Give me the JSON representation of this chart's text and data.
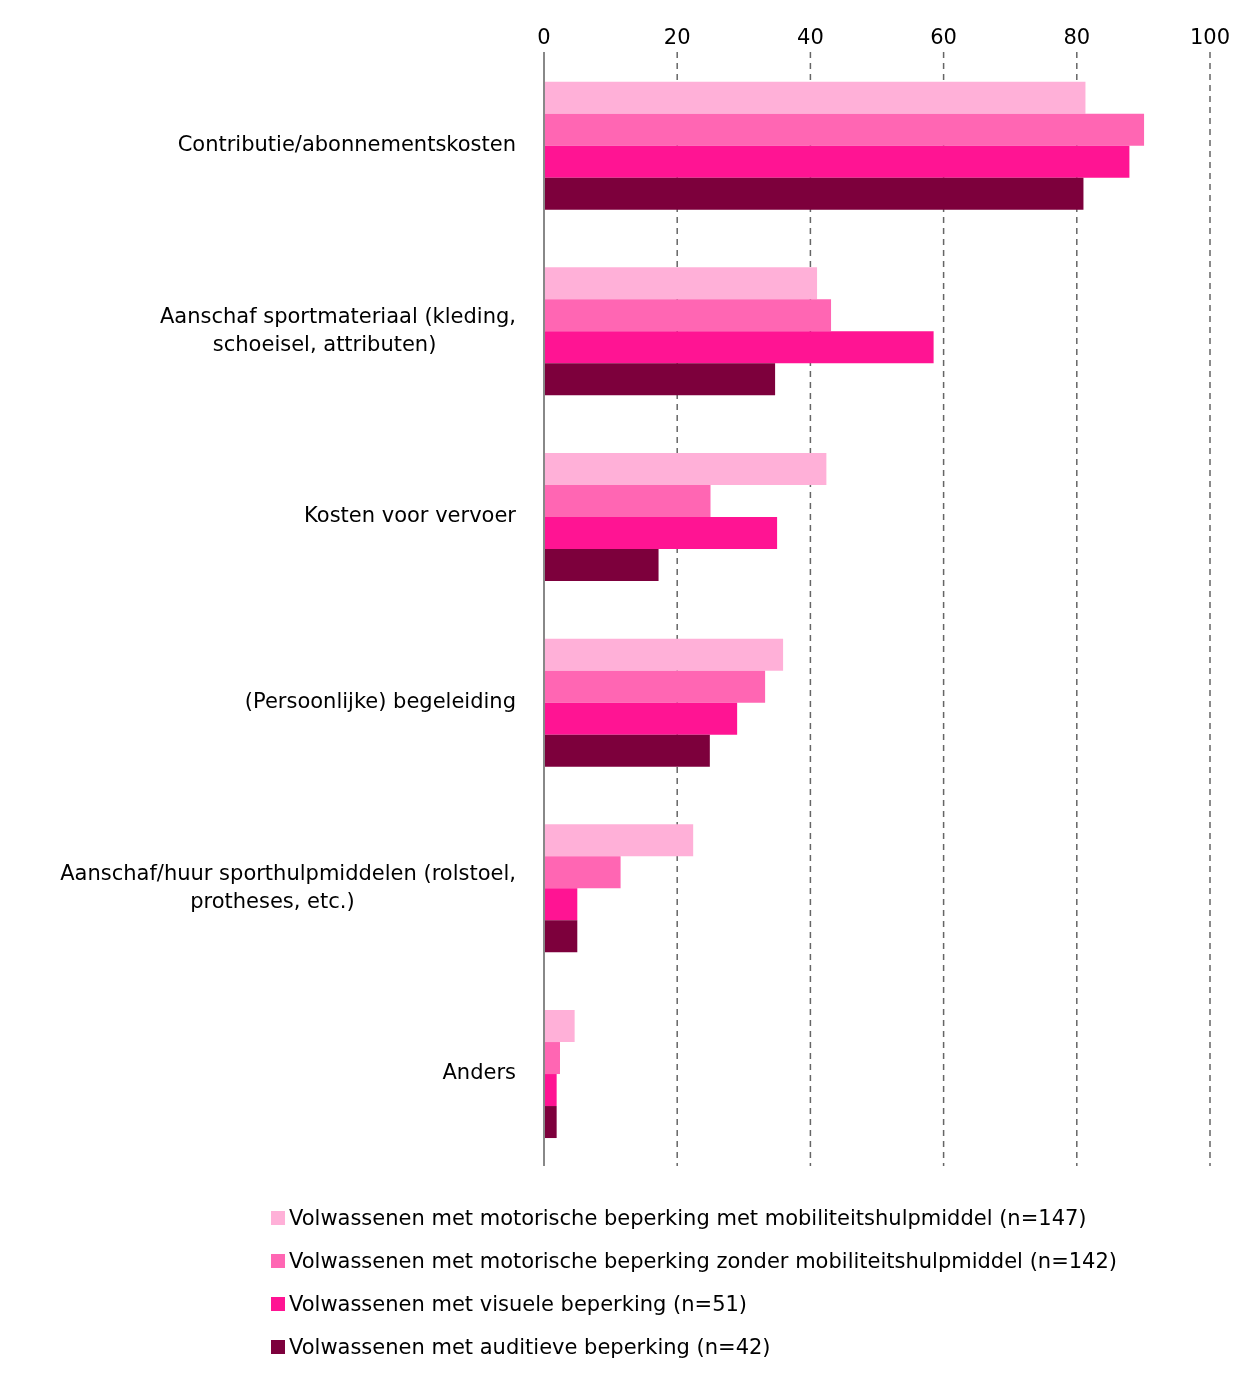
{
  "chart_data": {
    "type": "bar",
    "orientation": "horizontal",
    "categories": [
      "Contributie/abonnementskosten",
      "Aanschaf sportmateriaal (kleding, schoeisel, attributen)",
      "Kosten voor vervoer",
      "(Persoonlijke) begeleiding",
      "Aanschaf/huur sporthulpmiddelen (rolstoel, protheses, etc.)",
      "Anders"
    ],
    "series": [
      {
        "name": "Volwassenen met motorische beperking met mobiliteitshulpmiddel (n=147)",
        "color": "#ffb0d8",
        "values": [
          81.3,
          41,
          42.4,
          35.9,
          22.4,
          4.6
        ]
      },
      {
        "name": "Volwassenen met motorische beperking zonder mobiliteitshulpmiddel (n=142)",
        "color": "#ff66b3",
        "values": [
          90.1,
          43.1,
          25,
          33.2,
          11.5,
          2.4
        ]
      },
      {
        "name": "Volwassenen met visuele beperking (n=51)",
        "color": "#ff1493",
        "values": [
          87.9,
          58.5,
          35,
          29,
          5,
          1.9
        ]
      },
      {
        "name": "Volwassenen met auditieve beperking (n=42)",
        "color": "#7d003c",
        "values": [
          81,
          34.7,
          17.2,
          24.9,
          5,
          1.9
        ]
      }
    ],
    "xlim": [
      0,
      100
    ],
    "xticks": [
      0,
      20,
      40,
      60,
      80,
      100
    ],
    "grid": "x",
    "legend": "bottom"
  }
}
